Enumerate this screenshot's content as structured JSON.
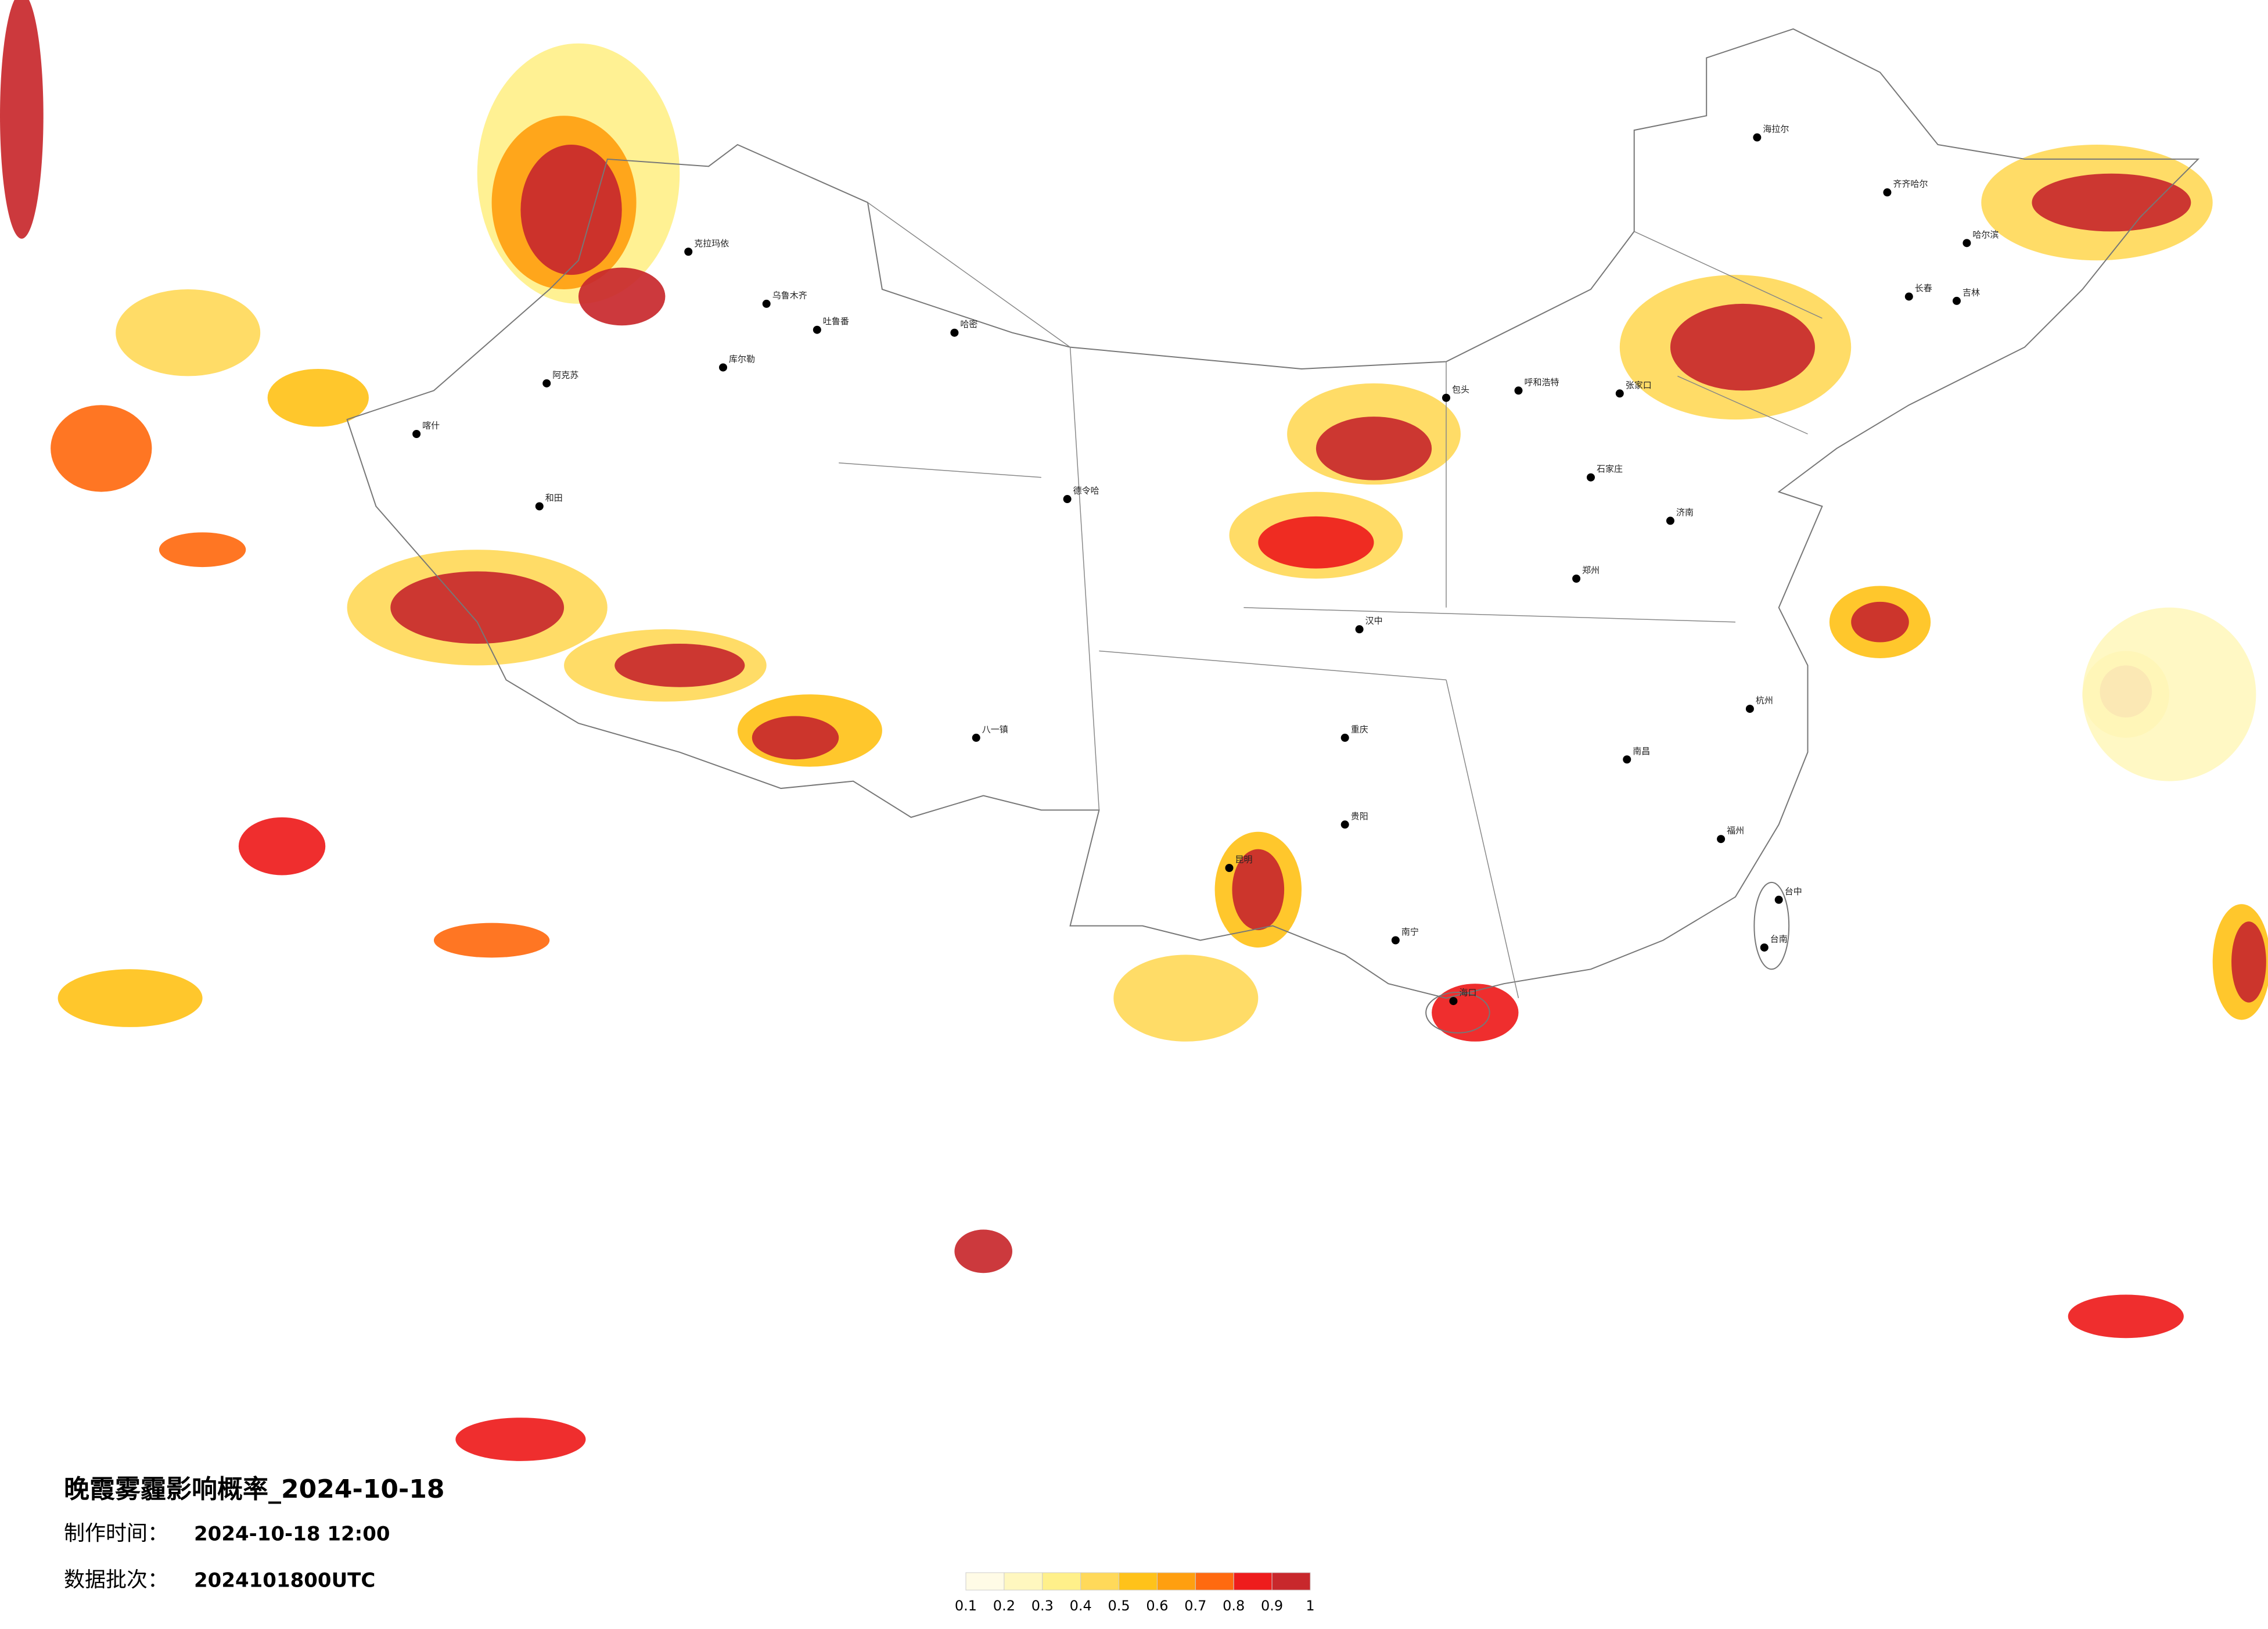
{
  "header": {
    "title": "晚霞雾霾影响概率_2024-10-18",
    "made_label": "制作时间：",
    "made_value": "2024-10-18 12:00",
    "batch_label": "数据批次：",
    "batch_value": "2024101800UTC"
  },
  "legend": {
    "colors": [
      "#fffbe6",
      "#fff7bf",
      "#fff08a",
      "#ffd95a",
      "#ffc21a",
      "#ff9f10",
      "#ff6a10",
      "#ee1c1c",
      "#c8282c"
    ],
    "ticks": [
      0.1,
      0.2,
      0.3,
      0.4,
      0.5,
      0.6,
      0.7,
      0.8,
      0.9,
      1
    ]
  },
  "cities": [
    "克拉玛依",
    "乌鲁木齐",
    "吐鲁番",
    "哈密",
    "库尔勒",
    "阿克苏",
    "喀什",
    "和田",
    "德令哈",
    "八一镇",
    "呼和浩特",
    "包头",
    "石家庄",
    "济南",
    "郑州",
    "汉中",
    "重庆",
    "贵阳",
    "昆明",
    "南宁",
    "南昌",
    "福州",
    "杭州",
    "哈尔滨",
    "长春",
    "吉林",
    "齐齐哈尔",
    "海拉尔",
    "台中",
    "台南",
    "海口",
    "张家口"
  ]
}
